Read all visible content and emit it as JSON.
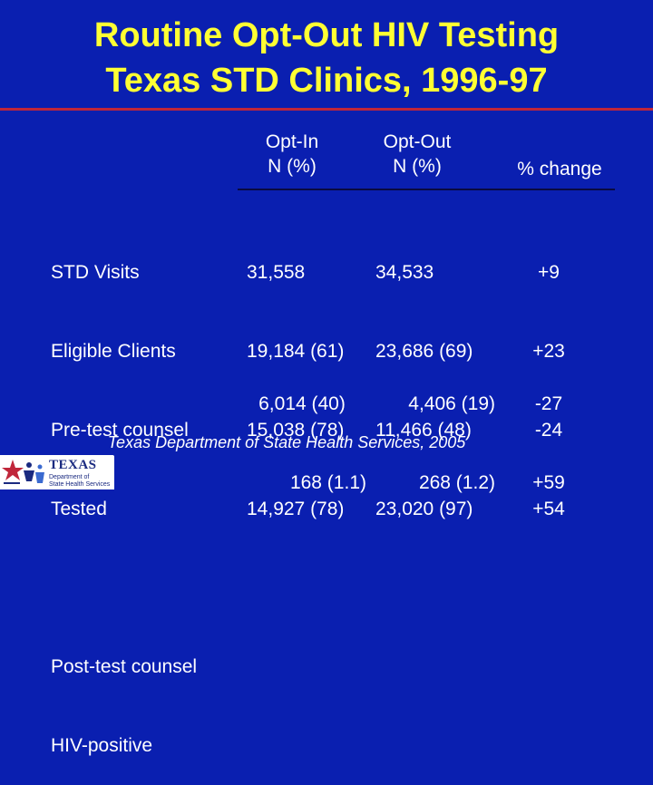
{
  "title": {
    "line1": "Routine Opt-Out HIV Testing",
    "line2": "Texas STD Clinics, 1996-97"
  },
  "headers": {
    "opt_in": {
      "line1": "Opt-In",
      "line2": "N (%)"
    },
    "opt_out": {
      "line1": "Opt-Out",
      "line2": "N (%)"
    },
    "change": "% change"
  },
  "rows_group1": [
    {
      "label": "STD Visits",
      "opt_in": "31,558",
      "opt_out": "34,533",
      "change": "+9"
    },
    {
      "label": "Eligible Clients",
      "opt_in": "19,184 (61)",
      "opt_out": "23,686 (69)",
      "change": "+23"
    },
    {
      "label": "Pre-test counsel",
      "opt_in": "15,038 (78)",
      "opt_out": "11,466 (48)",
      "change": "-24"
    },
    {
      "label": "Tested",
      "opt_in": "14,927 (78)",
      "opt_out": "23,020 (97)",
      "change": "+54"
    }
  ],
  "rows_group2": [
    {
      "label": "Post-test counsel",
      "opt_in": "6,014 (40)",
      "opt_out": "4,406 (19)",
      "change": "-27"
    },
    {
      "label": "HIV-positive",
      "opt_in": "168 (1.1)",
      "opt_out": "268 (1.2)",
      "change": "+59"
    }
  ],
  "footer": "Texas Department of State Health Services, 2005",
  "logo": {
    "line1": "TEXAS",
    "line2": "Department of",
    "line3": "State Health Services",
    "icon": "texas-star-people-icon"
  },
  "colors": {
    "background": "#0a1fb0",
    "title": "#ffff33",
    "title_rule": "#c0263a",
    "text": "#ffffff"
  }
}
